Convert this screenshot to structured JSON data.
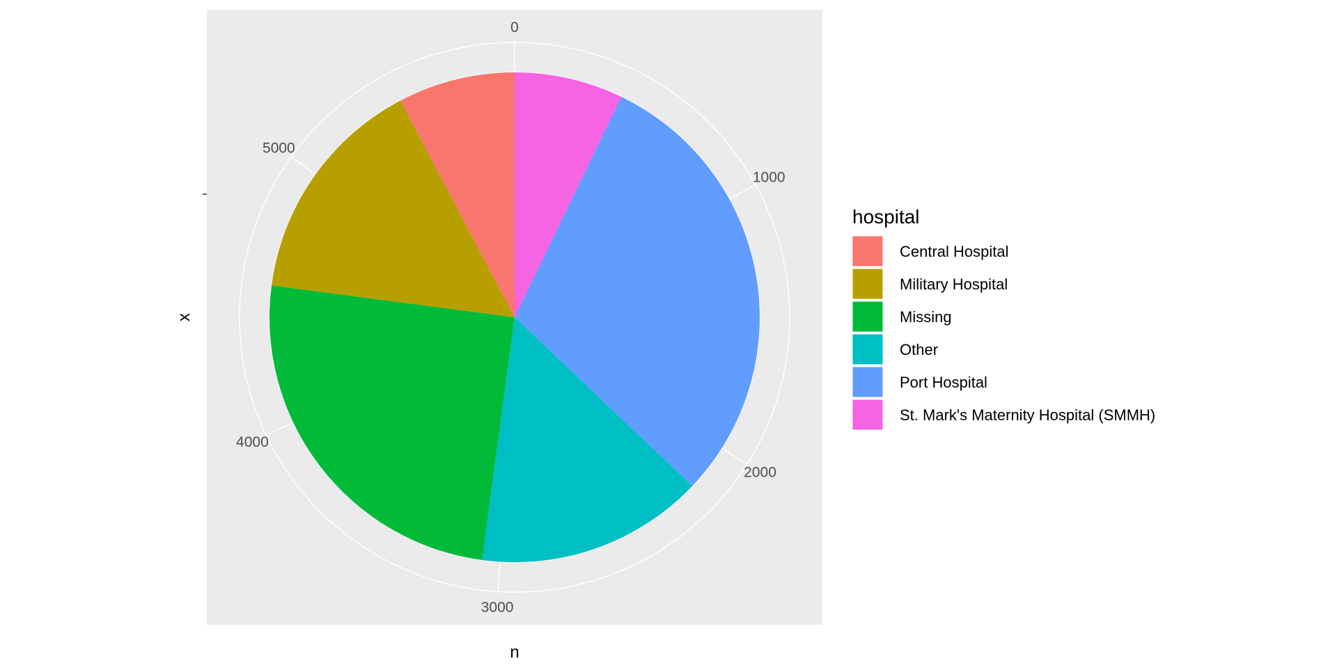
{
  "chart_data": {
    "type": "pie",
    "xlabel": "n",
    "ylabel": "x",
    "radial_ticks": [
      {
        "value": 0,
        "label": "0"
      },
      {
        "value": 1000,
        "label": "1000"
      },
      {
        "value": 2000,
        "label": "2000"
      },
      {
        "value": 3000,
        "label": "3000"
      },
      {
        "value": 4000,
        "label": "4000"
      },
      {
        "value": 5000,
        "label": "5000"
      }
    ],
    "total": 5888,
    "legend": {
      "title": "hospital",
      "placement": "right"
    },
    "slices": [
      {
        "category": "St. Mark's Maternity Hospital (SMMH)",
        "value": 422,
        "color": "#F564E3"
      },
      {
        "category": "Port Hospital",
        "value": 1762,
        "color": "#619CFF"
      },
      {
        "category": "Other",
        "value": 885,
        "color": "#00BFC4"
      },
      {
        "category": "Missing",
        "value": 1469,
        "color": "#00BA38"
      },
      {
        "category": "Military Hospital",
        "value": 896,
        "color": "#B79F00"
      },
      {
        "category": "Central Hospital",
        "value": 454,
        "color": "#F8766D"
      }
    ],
    "legend_order": [
      "Central Hospital",
      "Military Hospital",
      "Missing",
      "Other",
      "Port Hospital",
      "St. Mark's Maternity Hospital (SMMH)"
    ],
    "panel_background": "#EBEBEB",
    "grid_color": "#FFFFFF"
  }
}
